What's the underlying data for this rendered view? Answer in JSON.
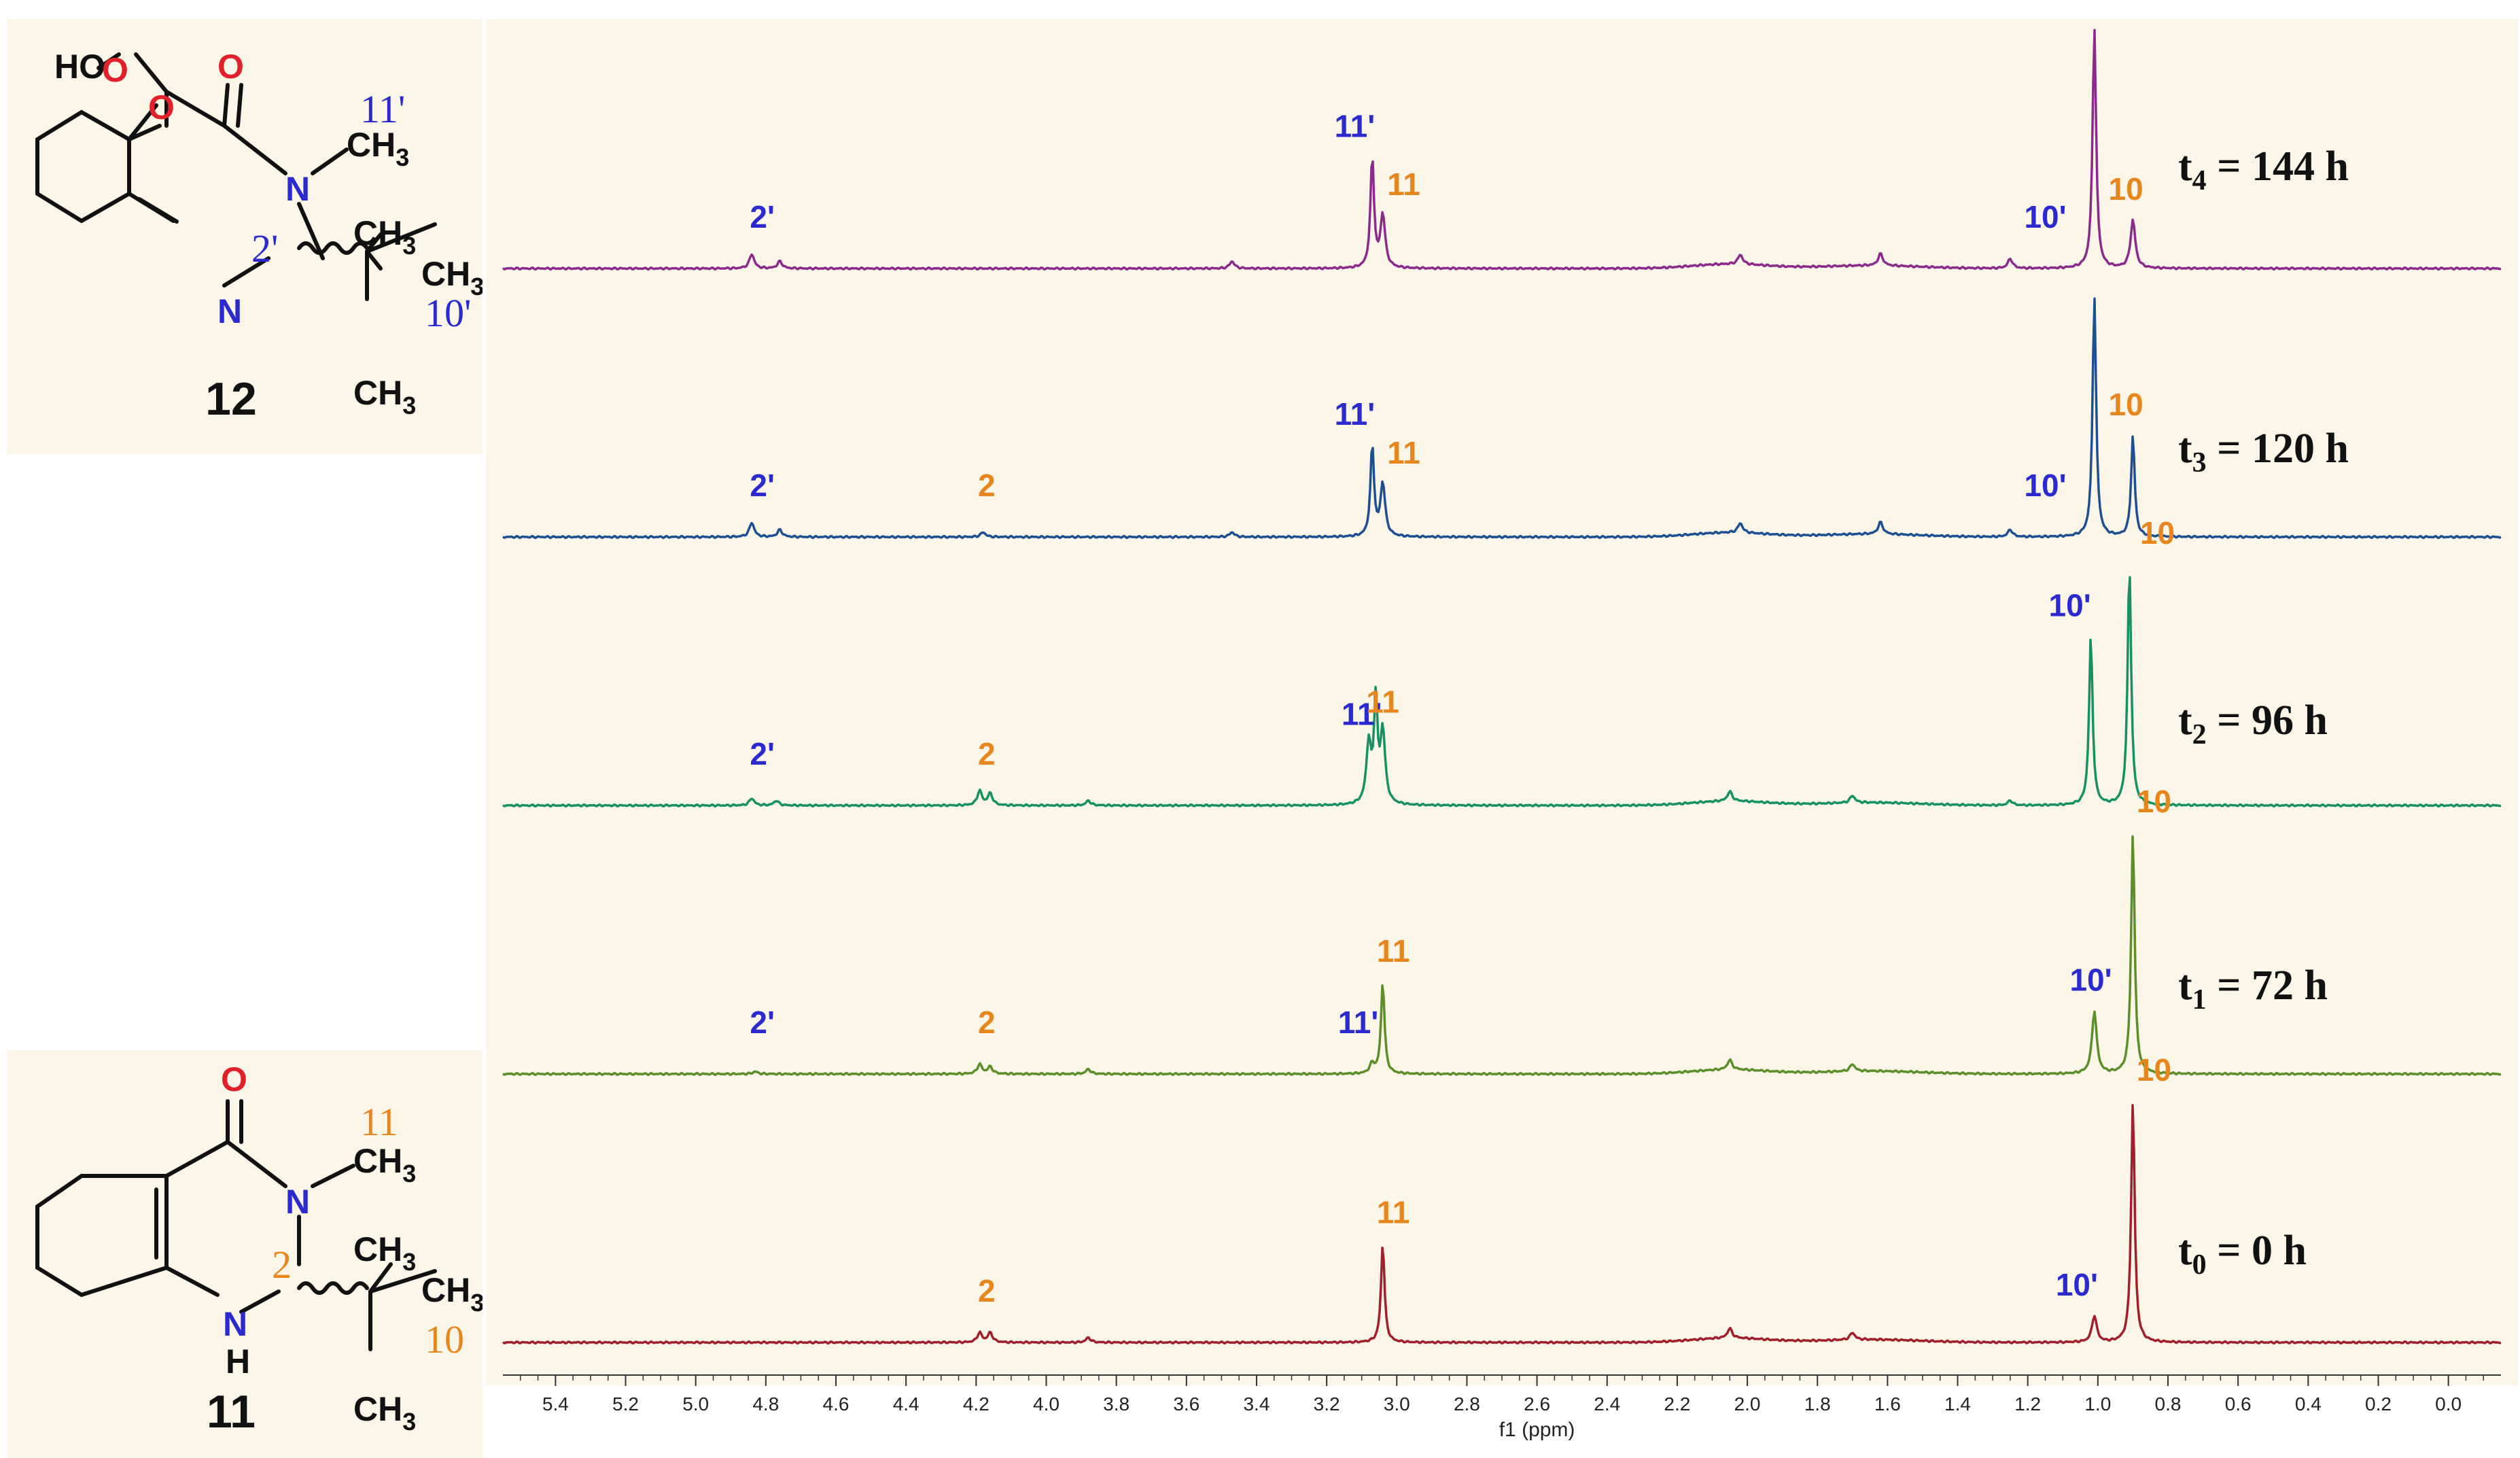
{
  "chart_data": {
    "type": "line",
    "xlabel": "f1 (ppm)",
    "xlim": [
      5.55,
      -0.15
    ],
    "x_reversed": true,
    "x_ticks": [
      5.4,
      5.2,
      5.0,
      4.8,
      4.6,
      4.4,
      4.2,
      4.0,
      3.8,
      3.6,
      3.4,
      3.2,
      3.0,
      2.8,
      2.6,
      2.4,
      2.2,
      2.0,
      1.8,
      1.6,
      1.4,
      1.2,
      1.0,
      0.8,
      0.6,
      0.4,
      0.2,
      0.0
    ],
    "x_tick_labels": [
      "5.4",
      "5.2",
      "5.0",
      "4.8",
      "4.6",
      "4.4",
      "4.2",
      "4.0",
      "3.8",
      "3.6",
      "3.4",
      "3.2",
      "3.0",
      "2.8",
      "2.6",
      "2.4",
      "2.2",
      "2.0",
      "1.8",
      "1.6",
      "1.4",
      "1.2",
      "1.0",
      "0.8",
      "0.6",
      "0.4",
      "0.2",
      "0.0"
    ],
    "grid": false,
    "legend": "none",
    "series": [
      {
        "name": "t4 = 144 h",
        "color": "#8b2a8b",
        "peaks": [
          [
            4.84,
            0.06
          ],
          [
            4.76,
            0.03
          ],
          [
            3.47,
            0.03
          ],
          [
            3.07,
            0.46
          ],
          [
            3.04,
            0.22
          ],
          [
            2.02,
            0.04
          ],
          [
            1.62,
            0.05
          ],
          [
            1.25,
            0.04
          ],
          [
            1.01,
            1.0
          ],
          [
            0.9,
            0.2
          ]
        ],
        "labels": [
          {
            "text": "2'",
            "ppm": 4.81,
            "color": "#2a2acf"
          },
          {
            "text": "11'",
            "ppm": 3.12,
            "color": "#2a2acf"
          },
          {
            "text": "11",
            "ppm": 2.98,
            "color": "#e8861e"
          },
          {
            "text": "10'",
            "ppm": 1.15,
            "color": "#2a2acf"
          },
          {
            "text": "10",
            "ppm": 0.92,
            "color": "#e8861e"
          }
        ]
      },
      {
        "name": "t3 = 120 h",
        "color": "#1d4f91",
        "peaks": [
          [
            4.84,
            0.06
          ],
          [
            4.76,
            0.03
          ],
          [
            4.18,
            0.02
          ],
          [
            3.47,
            0.02
          ],
          [
            3.07,
            0.38
          ],
          [
            3.04,
            0.22
          ],
          [
            2.02,
            0.04
          ],
          [
            1.62,
            0.05
          ],
          [
            1.25,
            0.03
          ],
          [
            1.01,
            1.0
          ],
          [
            0.9,
            0.42
          ]
        ],
        "labels": [
          {
            "text": "2'",
            "ppm": 4.81,
            "color": "#2a2acf"
          },
          {
            "text": "2",
            "ppm": 4.17,
            "color": "#e8861e"
          },
          {
            "text": "11'",
            "ppm": 3.12,
            "color": "#2a2acf"
          },
          {
            "text": "11",
            "ppm": 2.98,
            "color": "#e8861e"
          },
          {
            "text": "10'",
            "ppm": 1.15,
            "color": "#2a2acf"
          },
          {
            "text": "10",
            "ppm": 0.92,
            "color": "#e8861e"
          }
        ]
      },
      {
        "name": "t2 = 96 h",
        "color": "#179062",
        "peaks": [
          [
            4.84,
            0.03
          ],
          [
            4.77,
            0.02
          ],
          [
            4.19,
            0.06
          ],
          [
            4.16,
            0.05
          ],
          [
            3.88,
            0.02
          ],
          [
            3.08,
            0.25
          ],
          [
            3.06,
            0.42
          ],
          [
            3.04,
            0.3
          ],
          [
            2.05,
            0.04
          ],
          [
            1.7,
            0.03
          ],
          [
            1.25,
            0.02
          ],
          [
            1.02,
            0.7
          ],
          [
            0.91,
            1.0
          ]
        ],
        "labels": [
          {
            "text": "2'",
            "ppm": 4.81,
            "color": "#2a2acf"
          },
          {
            "text": "2",
            "ppm": 4.17,
            "color": "#e8861e"
          },
          {
            "text": "11'",
            "ppm": 3.1,
            "color": "#2a2acf"
          },
          {
            "text": "11",
            "ppm": 3.04,
            "color": "#e8861e"
          },
          {
            "text": "10'",
            "ppm": 1.08,
            "color": "#2a2acf"
          },
          {
            "text": "10",
            "ppm": 0.83,
            "color": "#e8861e"
          }
        ]
      },
      {
        "name": "t1 = 72 h",
        "color": "#5a8f2a",
        "peaks": [
          [
            4.83,
            0.01
          ],
          [
            4.19,
            0.04
          ],
          [
            4.16,
            0.03
          ],
          [
            3.88,
            0.02
          ],
          [
            3.07,
            0.04
          ],
          [
            3.04,
            0.38
          ],
          [
            2.05,
            0.04
          ],
          [
            1.7,
            0.03
          ],
          [
            1.01,
            0.26
          ],
          [
            0.9,
            1.0
          ]
        ],
        "labels": [
          {
            "text": "2'",
            "ppm": 4.81,
            "color": "#2a2acf"
          },
          {
            "text": "2",
            "ppm": 4.17,
            "color": "#e8861e"
          },
          {
            "text": "11'",
            "ppm": 3.11,
            "color": "#2a2acf"
          },
          {
            "text": "11",
            "ppm": 3.01,
            "color": "#e8861e"
          },
          {
            "text": "10'",
            "ppm": 1.02,
            "color": "#2a2acf"
          },
          {
            "text": "10",
            "ppm": 0.84,
            "color": "#e8861e"
          }
        ]
      },
      {
        "name": "t0 = 0 h",
        "color": "#a01f2a",
        "peaks": [
          [
            4.19,
            0.04
          ],
          [
            4.16,
            0.04
          ],
          [
            3.88,
            0.02
          ],
          [
            3.04,
            0.41
          ],
          [
            2.05,
            0.04
          ],
          [
            1.7,
            0.03
          ],
          [
            1.01,
            0.11
          ],
          [
            0.9,
            1.0
          ]
        ],
        "labels": [
          {
            "text": "2",
            "ppm": 4.17,
            "color": "#e8861e"
          },
          {
            "text": "11",
            "ppm": 3.01,
            "color": "#e8861e"
          },
          {
            "text": "10'",
            "ppm": 1.06,
            "color": "#2a2acf"
          },
          {
            "text": "10",
            "ppm": 0.84,
            "color": "#e8861e"
          }
        ]
      }
    ],
    "time_labels": [
      {
        "t": "t",
        "sub": "4",
        "rest": " = 144 h"
      },
      {
        "t": "t",
        "sub": "3",
        "rest": " = 120 h"
      },
      {
        "t": "t",
        "sub": "2",
        "rest": " = 96 h"
      },
      {
        "t": "t",
        "sub": "1",
        "rest": " = 72 h"
      },
      {
        "t": "t",
        "sub": "0",
        "rest": " = 0 h"
      }
    ]
  },
  "structures": {
    "top": {
      "compound_number": "12",
      "atoms": {
        "ho": "HO",
        "o1": "O",
        "o2": "O",
        "carbonyl_o": "O",
        "n_top": "N",
        "n_bottom": "N",
        "ch3_n": "CH",
        "ch3_n_sub": "3",
        "ch3_a": "CH",
        "ch3_a_sub": "3",
        "ch3_b": "CH",
        "ch3_b_sub": "3",
        "ch3_c": "CH",
        "ch3_c_sub": "3"
      },
      "labels": {
        "methyl": "11'",
        "c2": "2'",
        "tbu": "10'"
      }
    },
    "bottom": {
      "compound_number": "11",
      "atoms": {
        "carbonyl_o": "O",
        "n_top": "N",
        "nh_n": "N",
        "nh_h": "H",
        "ch3_n": "CH",
        "ch3_n_sub": "3",
        "ch3_a": "CH",
        "ch3_a_sub": "3",
        "ch3_b": "CH",
        "ch3_b_sub": "3",
        "ch3_c": "CH",
        "ch3_c_sub": "3"
      },
      "labels": {
        "methyl": "11",
        "c2": "2",
        "tbu": "10"
      }
    },
    "colors": {
      "blue": "#2a2acf",
      "orange": "#e8861e",
      "red": "#e0202a"
    }
  }
}
